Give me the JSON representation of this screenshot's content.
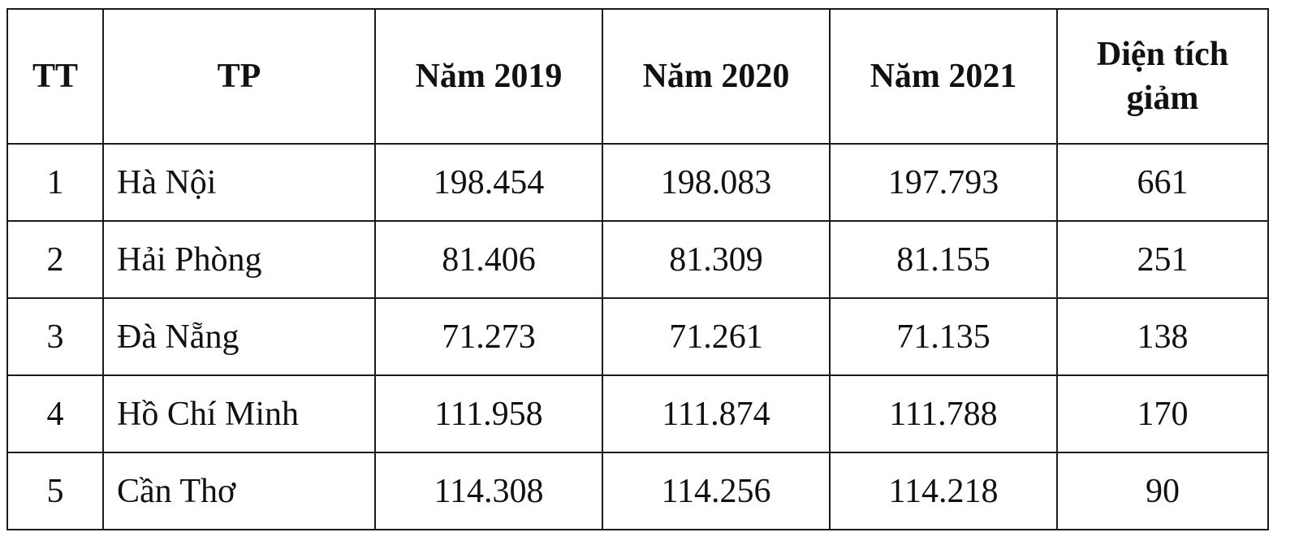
{
  "table": {
    "headers": {
      "tt": "TT",
      "tp": "TP",
      "y2019": "Năm 2019",
      "y2020": "Năm 2020",
      "y2021": "Năm 2021",
      "decrease_line1": "Diện tích",
      "decrease_line2": "giảm"
    },
    "rows": [
      {
        "tt": "1",
        "tp": "Hà Nội",
        "y2019": "198.454",
        "y2020": "198.083",
        "y2021": "197.793",
        "decrease": "661"
      },
      {
        "tt": "2",
        "tp": "Hải Phòng",
        "y2019": "81.406",
        "y2020": "81.309",
        "y2021": "81.155",
        "decrease": "251"
      },
      {
        "tt": "3",
        "tp": "Đà Nẵng",
        "y2019": "71.273",
        "y2020": "71.261",
        "y2021": "71.135",
        "decrease": "138"
      },
      {
        "tt": "4",
        "tp": "Hồ Chí Minh",
        "y2019": "111.958",
        "y2020": "111.874",
        "y2021": "111.788",
        "decrease": "170"
      },
      {
        "tt": "5",
        "tp": "Cần Thơ",
        "y2019": "114.308",
        "y2020": "114.256",
        "y2021": "114.218",
        "decrease": "90"
      }
    ]
  }
}
